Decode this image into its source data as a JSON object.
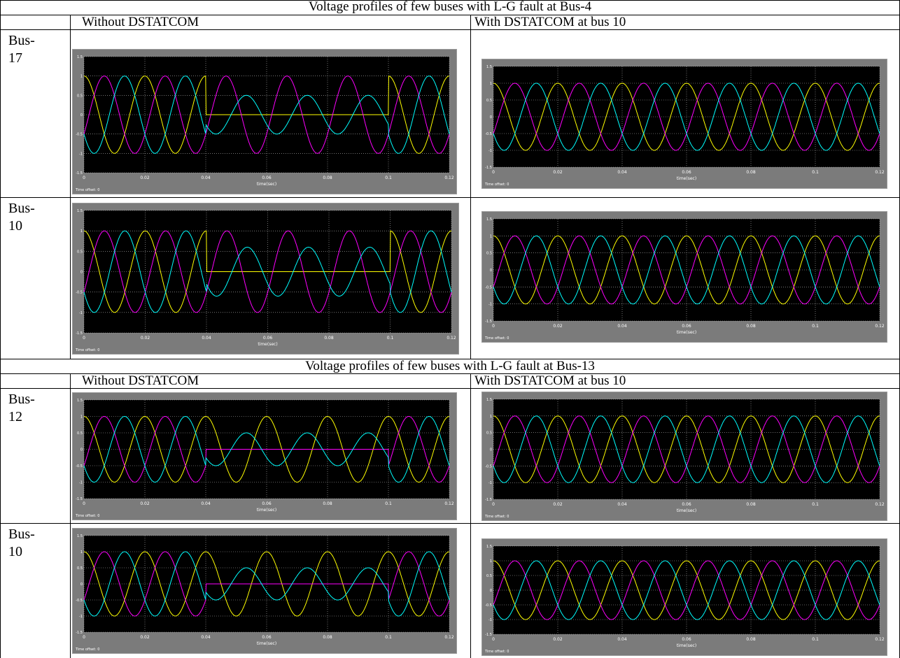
{
  "sections": [
    {
      "title": "Voltage profiles of few buses with L-G fault at Bus-4",
      "col_left": "Without DSTATCOM",
      "col_right": "With DSTATCOM at bus 10",
      "rows": [
        {
          "bus_label": "Bus-17"
        },
        {
          "bus_label": "Bus-10"
        }
      ]
    },
    {
      "title": "Voltage profiles of few buses with L-G fault at Bus-13",
      "col_left": "Without DSTATCOM",
      "col_right": "With DSTATCOM at bus 10",
      "rows": [
        {
          "bus_label": "Bus-12"
        },
        {
          "bus_label": "Bus-10"
        }
      ]
    }
  ],
  "scope_labels": {
    "xlabel": "time(sec)",
    "time_offset": "Time offset:  0",
    "xticks": [
      "0",
      "0.02",
      "0.04",
      "0.06",
      "0.08",
      "0.1",
      "0.12"
    ],
    "yticks": [
      "-1.5",
      "-1",
      "-0.5",
      "0",
      "0.5",
      "1",
      "1.5"
    ]
  },
  "colors": {
    "phase_a": "#ffff00",
    "phase_b": "#ff00ff",
    "phase_c": "#00ffff",
    "scope_bg": "#000000",
    "scope_frame": "#7b7b7b",
    "grid": "#bbbbbb"
  },
  "chart_data": [
    {
      "type": "line",
      "title": "",
      "xlabel": "time(sec)",
      "ylabel": "",
      "xlim": [
        0,
        0.12
      ],
      "ylim": [
        -1.5,
        1.5
      ],
      "grid": true,
      "frequency_hz": 50,
      "fault_interval_s": [
        0.04,
        0.1
      ],
      "series": [
        {
          "color": "#ffff00",
          "amplitude_normal": 1.0,
          "amplitude_fault": 0.0,
          "phase_deg": 90
        },
        {
          "color": "#ff00ff",
          "amplitude_normal": 1.0,
          "amplitude_fault": 1.0,
          "phase_deg": -30
        },
        {
          "color": "#00ffff",
          "amplitude_normal": 1.0,
          "amplitude_fault": 0.5,
          "phase_deg": 210
        }
      ]
    },
    {
      "type": "line",
      "title": "",
      "xlabel": "time(sec)",
      "ylabel": "",
      "xlim": [
        0,
        0.12
      ],
      "ylim": [
        -1.5,
        1.5
      ],
      "grid": true,
      "frequency_hz": 50,
      "fault_interval_s": [
        0.04,
        0.1
      ],
      "series": [
        {
          "color": "#ffff00",
          "amplitude_normal": 1.0,
          "amplitude_fault": 1.0,
          "phase_deg": 90
        },
        {
          "color": "#ff00ff",
          "amplitude_normal": 1.0,
          "amplitude_fault": 1.0,
          "phase_deg": -30
        },
        {
          "color": "#00ffff",
          "amplitude_normal": 1.0,
          "amplitude_fault": 1.0,
          "phase_deg": 210
        }
      ]
    },
    {
      "type": "line",
      "title": "",
      "xlabel": "time(sec)",
      "ylabel": "",
      "xlim": [
        0,
        0.12
      ],
      "ylim": [
        -1.5,
        1.5
      ],
      "grid": true,
      "frequency_hz": 50,
      "fault_interval_s": [
        0.04,
        0.1
      ],
      "series": [
        {
          "color": "#ffff00",
          "amplitude_normal": 1.0,
          "amplitude_fault": 0.0,
          "phase_deg": 90
        },
        {
          "color": "#ff00ff",
          "amplitude_normal": 1.0,
          "amplitude_fault": 1.0,
          "phase_deg": -30
        },
        {
          "color": "#00ffff",
          "amplitude_normal": 1.0,
          "amplitude_fault": 0.6,
          "phase_deg": 210
        }
      ]
    },
    {
      "type": "line",
      "title": "",
      "xlabel": "time(sec)",
      "ylabel": "",
      "xlim": [
        0,
        0.12
      ],
      "ylim": [
        -1.5,
        1.5
      ],
      "grid": true,
      "frequency_hz": 50,
      "fault_interval_s": [
        0.04,
        0.1
      ],
      "series": [
        {
          "color": "#ffff00",
          "amplitude_normal": 1.0,
          "amplitude_fault": 1.0,
          "phase_deg": 90
        },
        {
          "color": "#ff00ff",
          "amplitude_normal": 1.0,
          "amplitude_fault": 1.0,
          "phase_deg": -30
        },
        {
          "color": "#00ffff",
          "amplitude_normal": 1.0,
          "amplitude_fault": 1.0,
          "phase_deg": 210
        }
      ]
    },
    {
      "type": "line",
      "title": "",
      "xlabel": "time(sec)",
      "ylabel": "",
      "xlim": [
        0,
        0.12
      ],
      "ylim": [
        -1.5,
        1.5
      ],
      "grid": true,
      "frequency_hz": 50,
      "fault_interval_s": [
        0.04,
        0.1
      ],
      "series": [
        {
          "color": "#ffff00",
          "amplitude_normal": 1.0,
          "amplitude_fault": 1.0,
          "phase_deg": 90
        },
        {
          "color": "#ff00ff",
          "amplitude_normal": 1.0,
          "amplitude_fault": 0.0,
          "phase_deg": -30
        },
        {
          "color": "#00ffff",
          "amplitude_normal": 1.0,
          "amplitude_fault": 0.5,
          "phase_deg": 210
        }
      ]
    },
    {
      "type": "line",
      "title": "",
      "xlabel": "time(sec)",
      "ylabel": "",
      "xlim": [
        0,
        0.12
      ],
      "ylim": [
        -1.5,
        1.5
      ],
      "grid": true,
      "frequency_hz": 50,
      "fault_interval_s": [
        0.04,
        0.1
      ],
      "series": [
        {
          "color": "#ffff00",
          "amplitude_normal": 1.0,
          "amplitude_fault": 1.0,
          "phase_deg": 90
        },
        {
          "color": "#ff00ff",
          "amplitude_normal": 1.0,
          "amplitude_fault": 1.0,
          "phase_deg": -30
        },
        {
          "color": "#00ffff",
          "amplitude_normal": 1.0,
          "amplitude_fault": 1.0,
          "phase_deg": 210
        }
      ]
    },
    {
      "type": "line",
      "title": "",
      "xlabel": "time(sec)",
      "ylabel": "",
      "xlim": [
        0,
        0.12
      ],
      "ylim": [
        -1.5,
        1.5
      ],
      "grid": true,
      "frequency_hz": 50,
      "fault_interval_s": [
        0.04,
        0.1
      ],
      "series": [
        {
          "color": "#ffff00",
          "amplitude_normal": 1.0,
          "amplitude_fault": 1.0,
          "phase_deg": 90
        },
        {
          "color": "#ff00ff",
          "amplitude_normal": 1.0,
          "amplitude_fault": 0.0,
          "phase_deg": -30
        },
        {
          "color": "#00ffff",
          "amplitude_normal": 1.0,
          "amplitude_fault": 0.5,
          "phase_deg": 210
        }
      ]
    },
    {
      "type": "line",
      "title": "",
      "xlabel": "time(sec)",
      "ylabel": "",
      "xlim": [
        0,
        0.12
      ],
      "ylim": [
        -1.5,
        1.5
      ],
      "grid": true,
      "frequency_hz": 50,
      "fault_interval_s": [
        0.04,
        0.1
      ],
      "series": [
        {
          "color": "#ffff00",
          "amplitude_normal": 1.0,
          "amplitude_fault": 1.0,
          "phase_deg": 90
        },
        {
          "color": "#ff00ff",
          "amplitude_normal": 1.0,
          "amplitude_fault": 1.0,
          "phase_deg": -30
        },
        {
          "color": "#00ffff",
          "amplitude_normal": 1.0,
          "amplitude_fault": 1.0,
          "phase_deg": 210
        }
      ]
    }
  ]
}
